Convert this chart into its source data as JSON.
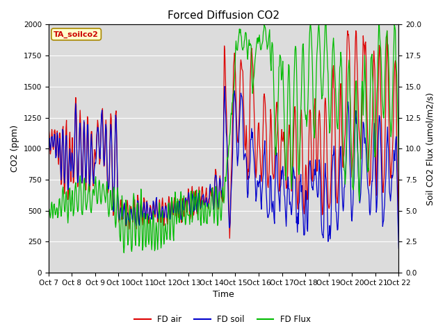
{
  "title": "Forced Diffusion CO2",
  "xlabel": "Time",
  "ylabel_left": "CO2 (ppm)",
  "ylabel_right": "Soil CO2 Flux (umol/m2/s)",
  "annotation": "TA_soilco2",
  "legend": [
    "FD air",
    "FD soil",
    "FD Flux"
  ],
  "line_colors": [
    "#dd0000",
    "#0000cc",
    "#00bb00"
  ],
  "ylim_left": [
    0,
    2000
  ],
  "ylim_right": [
    0,
    20
  ],
  "bg_color": "#dcdcdc",
  "fig_color": "#ffffff",
  "x_tick_labels": [
    "Oct 7",
    "Oct 8",
    "Oct 9",
    "Oct 10",
    "Oct 11",
    "Oct 12",
    "Oct 13",
    "Oct 14",
    "Oct 15",
    "Oct 16",
    "Oct 17",
    "Oct 18",
    "Oct 19",
    "Oct 20",
    "Oct 21",
    "Oct 22"
  ],
  "grid_color": "#ffffff",
  "title_fontsize": 11,
  "axis_fontsize": 9,
  "tick_fontsize": 7.5
}
